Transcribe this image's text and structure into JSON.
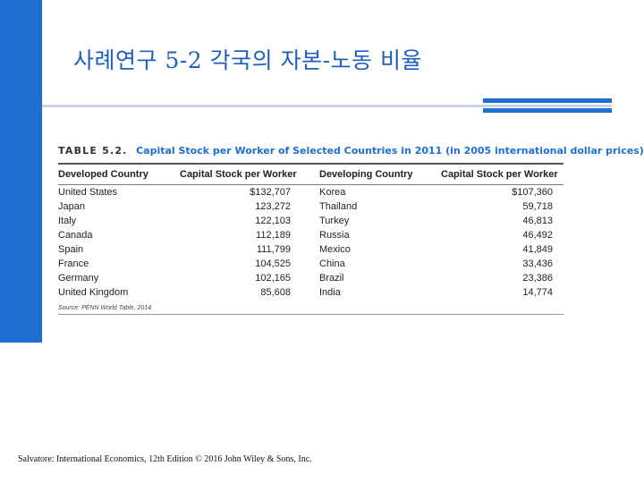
{
  "slide": {
    "title": "사례연구 5-2 각국의 자본-노동 비율",
    "accent_color": "#1f6fd1"
  },
  "table": {
    "number": "TABLE 5.2.",
    "caption": "Capital Stock per Worker of Selected Countries in 2011 (in 2005 international dollar prices)",
    "headers": [
      "Developed Country",
      "Capital Stock per Worker",
      "Developing Country",
      "Capital Stock per Worker"
    ],
    "rows": [
      [
        "United States",
        "$132,707",
        "Korea",
        "$107,360"
      ],
      [
        "Japan",
        "123,272",
        "Thailand",
        "59,718"
      ],
      [
        "Italy",
        "122,103",
        "Turkey",
        "46,813"
      ],
      [
        "Canada",
        "112,189",
        "Russia",
        "46,492"
      ],
      [
        "Spain",
        "111,799",
        "Mexico",
        "41,849"
      ],
      [
        "France",
        "104,525",
        "China",
        "33,436"
      ],
      [
        "Germany",
        "102,165",
        "Brazil",
        "23,386"
      ],
      [
        "United Kingdom",
        "85,608",
        "India",
        "14,774"
      ]
    ],
    "source": "Source: PENN World Table, 2014."
  },
  "footer": {
    "citation": "Salvatore: International Economics, 12th Edition © 2016 John Wiley & Sons, Inc."
  }
}
